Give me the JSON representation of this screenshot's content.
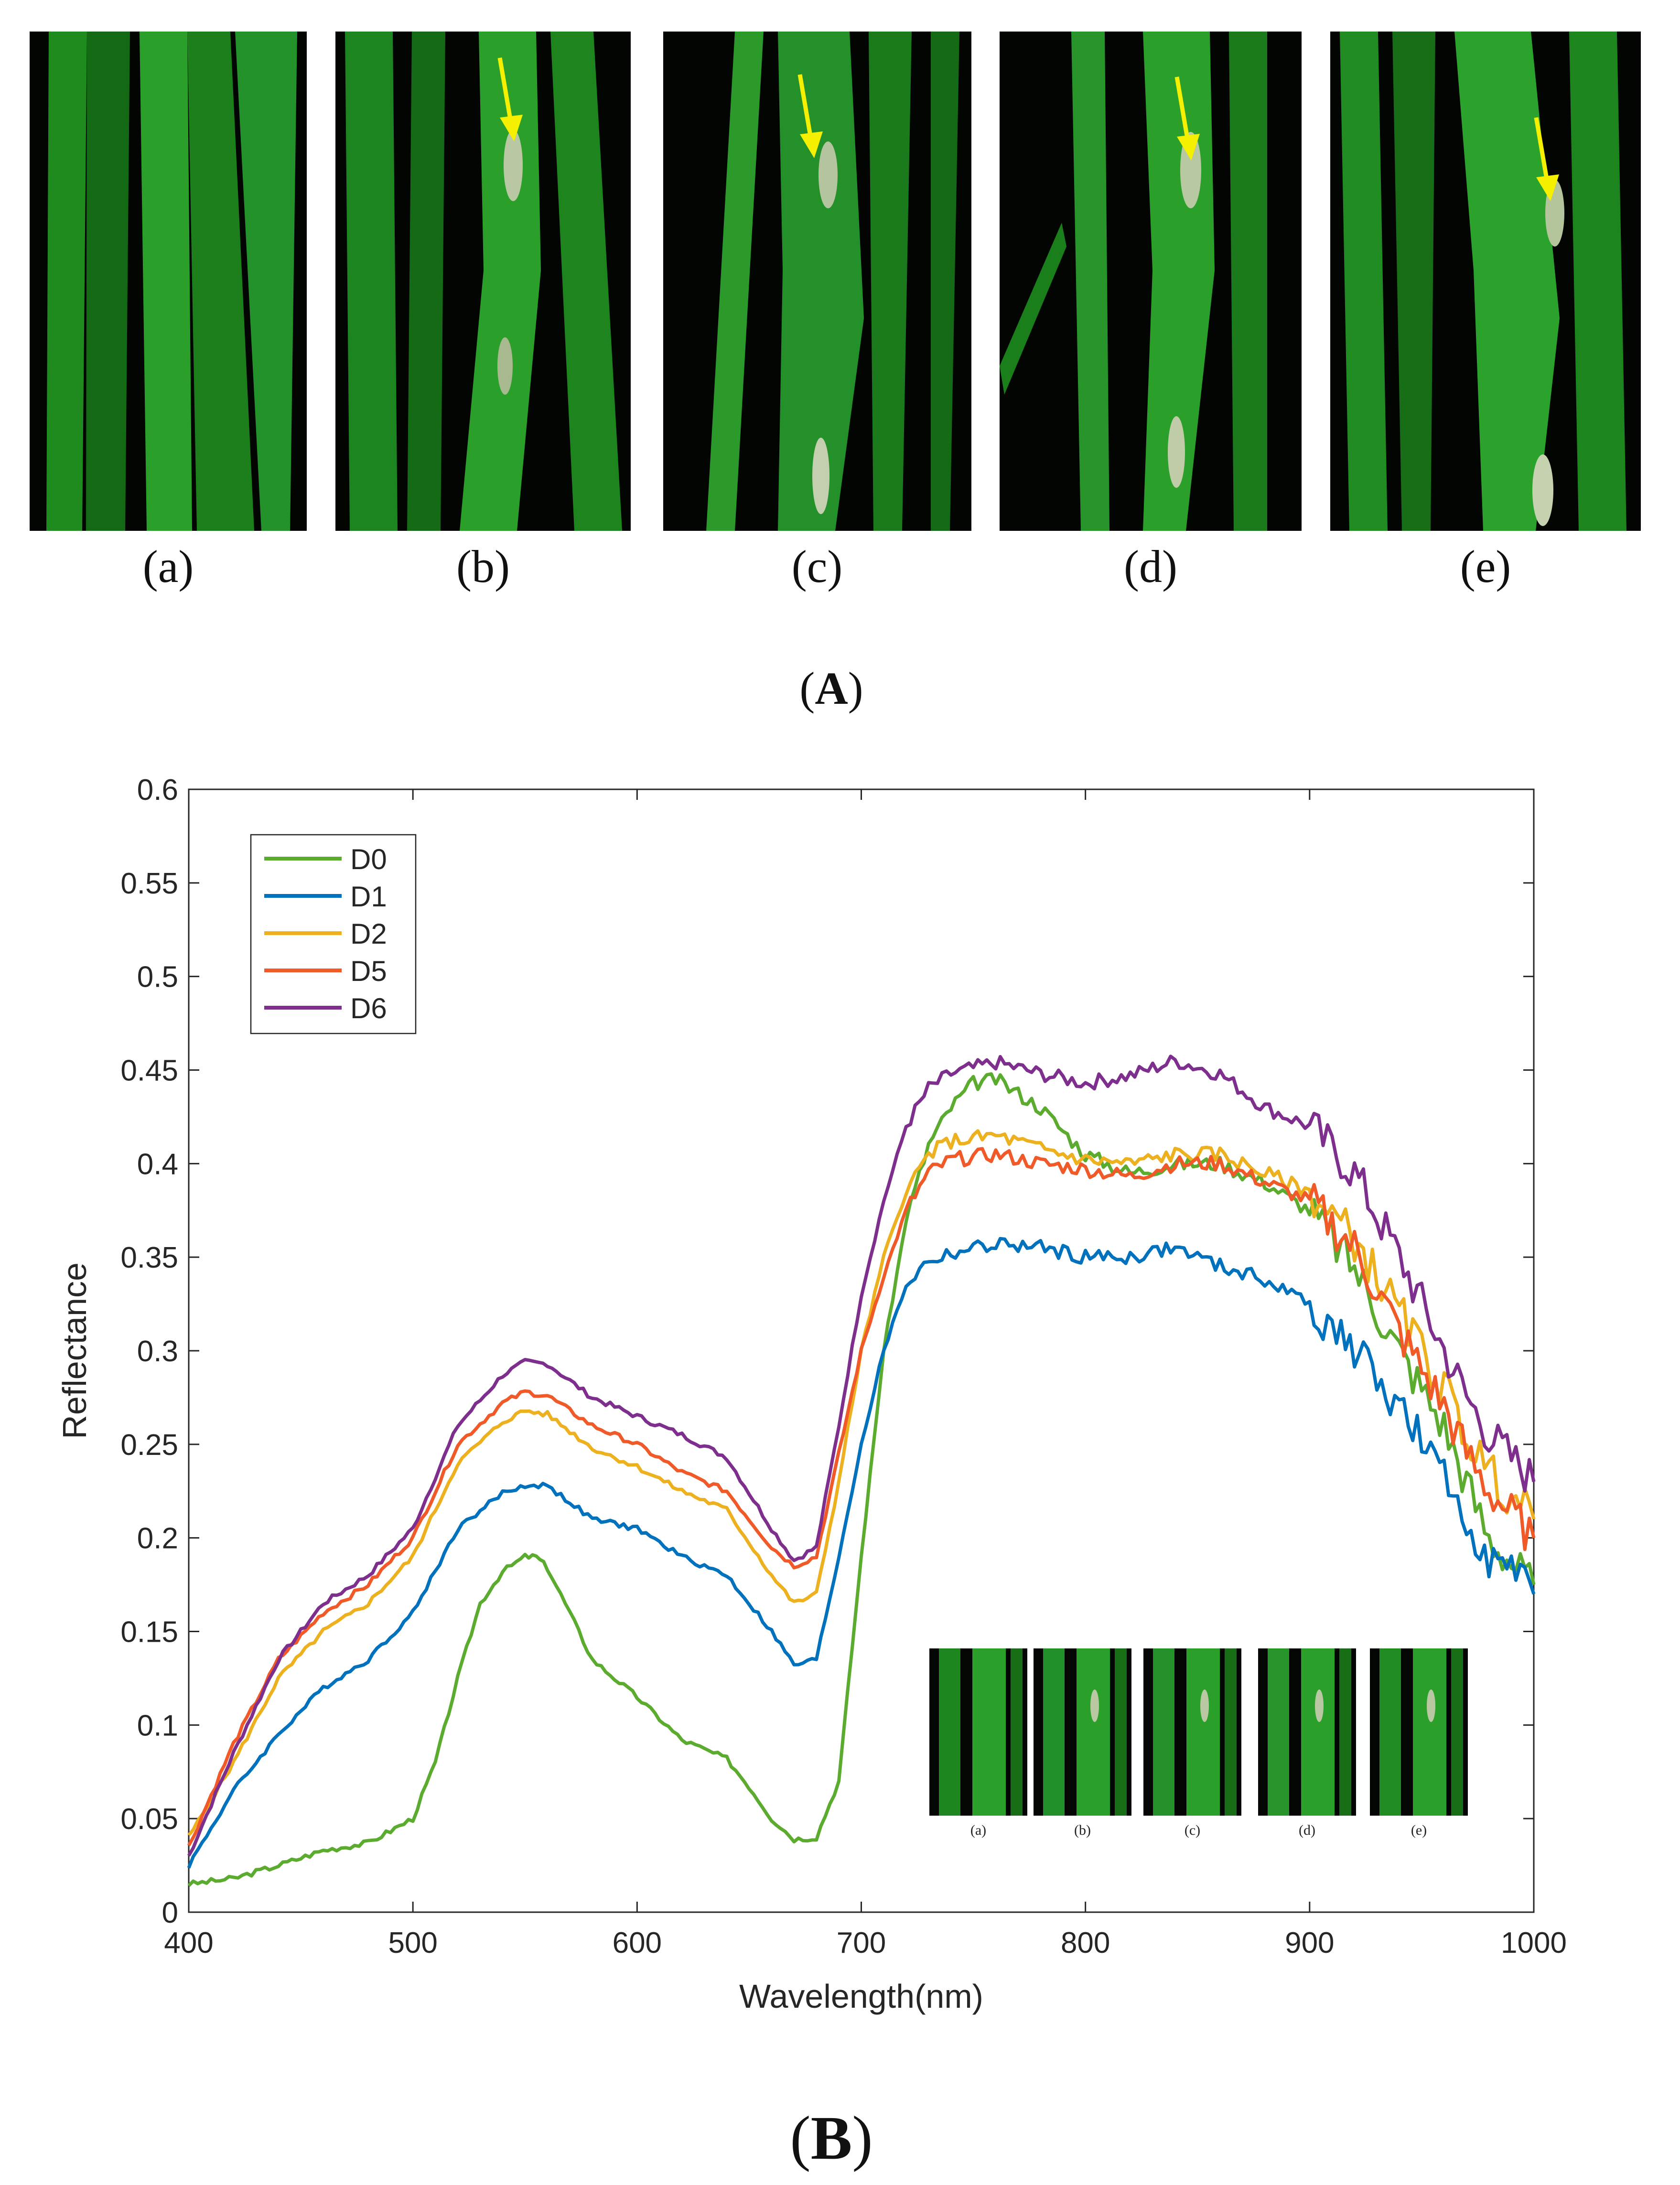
{
  "panel_a": {
    "label": "A",
    "photos": [
      {
        "label": "(a)",
        "arrow": false
      },
      {
        "label": "(b)",
        "arrow": true
      },
      {
        "label": "(c)",
        "arrow": true
      },
      {
        "label": "(d)",
        "arrow": true
      },
      {
        "label": "(e)",
        "arrow": true
      }
    ],
    "arrow_color": "#f5f000"
  },
  "panel_b": {
    "label": "B"
  },
  "chart_data": {
    "type": "line",
    "xlabel": "Wavelength(nm)",
    "ylabel": "Reflectance",
    "xlim": [
      400,
      1000
    ],
    "ylim": [
      0,
      0.6
    ],
    "xticks": [
      400,
      500,
      600,
      700,
      800,
      900,
      1000
    ],
    "yticks": [
      0,
      0.05,
      0.1,
      0.15,
      0.2,
      0.25,
      0.3,
      0.35,
      0.4,
      0.45,
      0.5,
      0.55,
      0.6
    ],
    "ytick_labels": [
      "0",
      "0.05",
      "0.1",
      "0.15",
      "0.2",
      "0.25",
      "0.3",
      "0.35",
      "0.4",
      "0.45",
      "0.5",
      "0.55",
      "0.6"
    ],
    "xtick_labels": [
      "400",
      "500",
      "600",
      "700",
      "800",
      "900",
      "1000"
    ],
    "legend_position": "top-left",
    "inset_labels": [
      "(a)",
      "(b)",
      "(c)",
      "(d)",
      "(e)"
    ],
    "series": [
      {
        "name": "D0",
        "color": "#5aab2e",
        "x": [
          400,
          420,
          440,
          460,
          480,
          500,
          510,
          520,
          530,
          540,
          550,
          555,
          560,
          570,
          580,
          600,
          620,
          640,
          650,
          660,
          670,
          680,
          690,
          700,
          710,
          720,
          730,
          740,
          750,
          760,
          780,
          800,
          820,
          840,
          860,
          880,
          900,
          920,
          940,
          960,
          970,
          980,
          1000
        ],
        "y": [
          0.015,
          0.018,
          0.025,
          0.033,
          0.037,
          0.05,
          0.08,
          0.125,
          0.165,
          0.182,
          0.19,
          0.19,
          0.184,
          0.16,
          0.135,
          0.115,
          0.092,
          0.082,
          0.067,
          0.05,
          0.039,
          0.04,
          0.07,
          0.19,
          0.3,
          0.37,
          0.41,
          0.43,
          0.443,
          0.445,
          0.43,
          0.405,
          0.395,
          0.4,
          0.4,
          0.39,
          0.375,
          0.345,
          0.3,
          0.26,
          0.23,
          0.2,
          0.175
        ]
      },
      {
        "name": "D1",
        "color": "#0072bd",
        "x": [
          400,
          420,
          440,
          460,
          480,
          500,
          520,
          540,
          550,
          560,
          580,
          600,
          620,
          640,
          660,
          670,
          680,
          690,
          700,
          710,
          720,
          730,
          740,
          760,
          780,
          800,
          820,
          840,
          860,
          880,
          900,
          920,
          940,
          960,
          970,
          980,
          1000
        ],
        "y": [
          0.025,
          0.065,
          0.095,
          0.12,
          0.135,
          0.16,
          0.205,
          0.224,
          0.228,
          0.228,
          0.21,
          0.205,
          0.19,
          0.18,
          0.15,
          0.132,
          0.135,
          0.19,
          0.25,
          0.3,
          0.335,
          0.348,
          0.352,
          0.357,
          0.355,
          0.35,
          0.35,
          0.355,
          0.345,
          0.338,
          0.325,
          0.3,
          0.27,
          0.23,
          0.21,
          0.19,
          0.17
        ]
      },
      {
        "name": "D2",
        "color": "#edb120",
        "x": [
          400,
          420,
          440,
          460,
          480,
          500,
          520,
          540,
          550,
          560,
          580,
          600,
          620,
          640,
          660,
          670,
          680,
          690,
          700,
          710,
          720,
          730,
          740,
          760,
          780,
          800,
          820,
          840,
          860,
          880,
          900,
          920,
          940,
          960,
          970,
          980,
          1000
        ],
        "y": [
          0.04,
          0.08,
          0.125,
          0.15,
          0.165,
          0.19,
          0.24,
          0.262,
          0.268,
          0.266,
          0.248,
          0.238,
          0.225,
          0.215,
          0.18,
          0.165,
          0.17,
          0.23,
          0.3,
          0.35,
          0.385,
          0.405,
          0.412,
          0.415,
          0.408,
          0.402,
          0.4,
          0.405,
          0.405,
          0.395,
          0.385,
          0.36,
          0.32,
          0.28,
          0.255,
          0.235,
          0.21
        ]
      },
      {
        "name": "D5",
        "color": "#f05a28",
        "x": [
          400,
          420,
          440,
          460,
          480,
          500,
          520,
          540,
          550,
          560,
          580,
          600,
          620,
          640,
          660,
          670,
          680,
          690,
          700,
          710,
          720,
          730,
          740,
          760,
          780,
          800,
          820,
          840,
          860,
          880,
          900,
          920,
          940,
          960,
          970,
          980,
          1000
        ],
        "y": [
          0.035,
          0.09,
          0.135,
          0.16,
          0.175,
          0.2,
          0.25,
          0.272,
          0.278,
          0.276,
          0.26,
          0.25,
          0.235,
          0.225,
          0.195,
          0.185,
          0.19,
          0.245,
          0.3,
          0.34,
          0.375,
          0.395,
          0.402,
          0.405,
          0.4,
          0.397,
          0.393,
          0.4,
          0.4,
          0.39,
          0.38,
          0.355,
          0.31,
          0.27,
          0.245,
          0.225,
          0.2
        ]
      },
      {
        "name": "D6",
        "color": "#7e2f8e",
        "x": [
          400,
          420,
          440,
          460,
          480,
          500,
          520,
          540,
          550,
          560,
          580,
          600,
          620,
          640,
          660,
          670,
          680,
          690,
          700,
          710,
          720,
          730,
          740,
          760,
          780,
          800,
          820,
          840,
          860,
          880,
          900,
          920,
          940,
          960,
          970,
          980,
          1000
        ],
        "y": [
          0.03,
          0.085,
          0.135,
          0.165,
          0.18,
          0.205,
          0.26,
          0.287,
          0.294,
          0.293,
          0.275,
          0.265,
          0.255,
          0.243,
          0.205,
          0.188,
          0.195,
          0.26,
          0.33,
          0.38,
          0.42,
          0.44,
          0.448,
          0.454,
          0.448,
          0.443,
          0.447,
          0.455,
          0.448,
          0.43,
          0.42,
          0.395,
          0.35,
          0.3,
          0.275,
          0.255,
          0.23
        ]
      }
    ]
  }
}
